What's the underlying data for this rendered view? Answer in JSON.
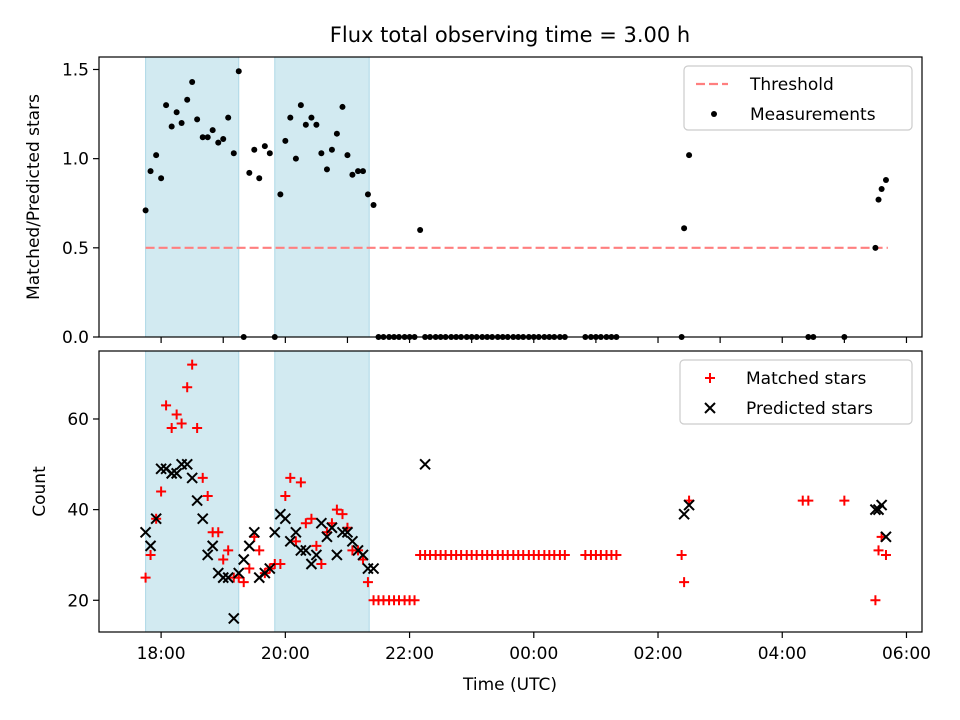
{
  "chart_data": {
    "title": "Flux total observing time = 3.00 h",
    "x_axis": {
      "label": "Time (UTC)",
      "range_hours": [
        17.0,
        6.25
      ],
      "ticks": [
        {
          "value": 18,
          "label": "18:00"
        },
        {
          "value": 20,
          "label": "20:00"
        },
        {
          "value": 22,
          "label": "22:00"
        },
        {
          "value": 24,
          "label": "00:00"
        },
        {
          "value": 26,
          "label": "02:00"
        },
        {
          "value": 28,
          "label": "04:00"
        },
        {
          "value": 30,
          "label": "06:00"
        }
      ]
    },
    "shaded_intervals_hours": [
      [
        17.75,
        19.25
      ],
      [
        19.83,
        21.35
      ]
    ],
    "shade_color": "#add8e6",
    "panels": [
      {
        "id": "top",
        "type": "scatter",
        "ylabel": "Matched/Predicted stars",
        "ylim": [
          0,
          1.57
        ],
        "yticks": [
          {
            "value": 0.0,
            "label": "0.0"
          },
          {
            "value": 0.5,
            "label": "0.5"
          },
          {
            "value": 1.0,
            "label": "1.0"
          },
          {
            "value": 1.5,
            "label": "1.5"
          }
        ],
        "threshold": {
          "name": "Threshold",
          "value": 0.5,
          "x_range": [
            17.75,
            29.7
          ],
          "color": "#ff7f7f"
        },
        "legend": {
          "position": "top-right",
          "entries": [
            "Threshold",
            "Measurements"
          ]
        },
        "series": [
          {
            "name": "Measurements",
            "color": "#000000",
            "marker": "dot",
            "x": [
              17.75,
              17.83,
              17.92,
              18.0,
              18.08,
              18.17,
              18.25,
              18.33,
              18.42,
              18.5,
              18.58,
              18.67,
              18.75,
              18.83,
              18.92,
              19.0,
              19.08,
              19.17,
              19.25,
              19.33,
              19.42,
              19.5,
              19.58,
              19.67,
              19.75,
              19.83,
              19.92,
              20.0,
              20.08,
              20.17,
              20.25,
              20.33,
              20.42,
              20.5,
              20.58,
              20.67,
              20.75,
              20.83,
              20.92,
              21.0,
              21.08,
              21.17,
              21.25,
              21.33,
              21.42,
              21.5,
              21.58,
              21.67,
              21.75,
              21.83,
              21.92,
              22.0,
              22.08,
              22.17,
              22.25,
              22.33,
              22.42,
              22.5,
              22.58,
              22.67,
              22.75,
              22.83,
              22.92,
              23.0,
              23.08,
              23.17,
              23.25,
              23.33,
              23.42,
              23.5,
              23.58,
              23.67,
              23.75,
              23.83,
              23.92,
              24.0,
              24.08,
              24.17,
              24.25,
              24.33,
              24.42,
              24.5,
              24.83,
              24.92,
              25.0,
              25.08,
              25.17,
              25.25,
              25.33,
              26.38,
              26.42,
              26.5,
              28.42,
              28.5,
              29.0,
              29.5,
              29.55,
              29.6,
              29.67
            ],
            "y": [
              0.71,
              0.93,
              1.02,
              0.89,
              1.3,
              1.18,
              1.26,
              1.2,
              1.33,
              1.43,
              1.22,
              1.12,
              1.12,
              1.16,
              1.09,
              1.11,
              1.23,
              1.03,
              1.49,
              0.0,
              0.92,
              1.05,
              0.89,
              1.07,
              1.03,
              0.0,
              0.8,
              1.1,
              1.23,
              1.0,
              1.3,
              1.19,
              1.23,
              1.19,
              1.03,
              0.94,
              1.05,
              1.14,
              1.29,
              1.02,
              0.91,
              0.93,
              0.93,
              0.8,
              0.74,
              0.0,
              0.0,
              0.0,
              0.0,
              0.0,
              0.0,
              0.0,
              0.0,
              0.6,
              0.0,
              0.0,
              0.0,
              0.0,
              0.0,
              0.0,
              0.0,
              0.0,
              0.0,
              0.0,
              0.0,
              0.0,
              0.0,
              0.0,
              0.0,
              0.0,
              0.0,
              0.0,
              0.0,
              0.0,
              0.0,
              0.0,
              0.0,
              0.0,
              0.0,
              0.0,
              0.0,
              0.0,
              0.0,
              0.0,
              0.0,
              0.0,
              0.0,
              0.0,
              0.0,
              0.0,
              0.61,
              1.02,
              0.0,
              0.0,
              0.0,
              0.5,
              0.77,
              0.83,
              0.88
            ]
          }
        ]
      },
      {
        "id": "bottom",
        "type": "scatter",
        "ylabel": "Count",
        "ylim": [
          13,
          75
        ],
        "yticks": [
          {
            "value": 20,
            "label": "20"
          },
          {
            "value": 40,
            "label": "40"
          },
          {
            "value": 60,
            "label": "60"
          }
        ],
        "legend": {
          "position": "top-right",
          "entries": [
            "Matched stars",
            "Predicted stars"
          ]
        },
        "series": [
          {
            "name": "Matched stars",
            "color": "#ff0000",
            "marker": "plus",
            "x": [
              17.75,
              17.83,
              17.92,
              18.0,
              18.08,
              18.17,
              18.25,
              18.33,
              18.42,
              18.5,
              18.58,
              18.67,
              18.75,
              18.83,
              18.92,
              19.0,
              19.08,
              19.17,
              19.25,
              19.33,
              19.42,
              19.5,
              19.58,
              19.67,
              19.75,
              19.83,
              19.92,
              20.0,
              20.08,
              20.17,
              20.25,
              20.33,
              20.42,
              20.5,
              20.58,
              20.67,
              20.75,
              20.83,
              20.92,
              21.0,
              21.08,
              21.17,
              21.25,
              21.33,
              21.42,
              21.5,
              21.58,
              21.67,
              21.75,
              21.83,
              21.92,
              22.0,
              22.08,
              22.17,
              22.25,
              22.33,
              22.42,
              22.5,
              22.58,
              22.67,
              22.75,
              22.83,
              22.92,
              23.0,
              23.08,
              23.17,
              23.25,
              23.33,
              23.42,
              23.5,
              23.58,
              23.67,
              23.75,
              23.83,
              23.92,
              24.0,
              24.08,
              24.17,
              24.25,
              24.33,
              24.42,
              24.5,
              24.83,
              24.92,
              25.0,
              25.08,
              25.17,
              25.25,
              25.33,
              26.38,
              26.42,
              26.5,
              28.33,
              28.42,
              29.0,
              29.5,
              29.55,
              29.6,
              29.67
            ],
            "y": [
              25,
              30,
              38,
              44,
              63,
              58,
              61,
              59,
              67,
              72,
              58,
              47,
              43,
              35,
              35,
              29,
              31,
              25,
              25,
              24,
              27,
              34,
              31,
              26,
              27,
              28,
              28,
              43,
              47,
              33,
              46,
              37,
              38,
              32,
              28,
              35,
              37,
              40,
              39,
              36,
              31,
              31,
              29,
              24,
              20,
              20,
              20,
              20,
              20,
              20,
              20,
              20,
              20,
              30,
              30,
              30,
              30,
              30,
              30,
              30,
              30,
              30,
              30,
              30,
              30,
              30,
              30,
              30,
              30,
              30,
              30,
              30,
              30,
              30,
              30,
              30,
              30,
              30,
              30,
              30,
              30,
              30,
              30,
              30,
              30,
              30,
              30,
              30,
              30,
              30,
              24,
              42,
              42,
              42,
              42,
              20,
              31,
              34,
              30
            ]
          },
          {
            "name": "Predicted stars",
            "color": "#000000",
            "marker": "cross",
            "x": [
              17.75,
              17.83,
              17.92,
              18.0,
              18.08,
              18.17,
              18.25,
              18.33,
              18.42,
              18.5,
              18.58,
              18.67,
              18.75,
              18.83,
              18.92,
              19.0,
              19.08,
              19.17,
              19.25,
              19.33,
              19.42,
              19.5,
              19.58,
              19.67,
              19.75,
              19.83,
              19.92,
              20.0,
              20.08,
              20.17,
              20.25,
              20.33,
              20.42,
              20.5,
              20.58,
              20.67,
              20.75,
              20.83,
              20.92,
              21.0,
              21.08,
              21.17,
              21.25,
              21.33,
              21.42,
              22.25,
              26.42,
              26.5,
              29.5,
              29.55,
              29.6,
              29.67
            ],
            "y": [
              35,
              32,
              38,
              49,
              49,
              48,
              48,
              50,
              50,
              47,
              42,
              38,
              30,
              32,
              26,
              25,
              25,
              16,
              26,
              29,
              32,
              35,
              25,
              26,
              27,
              35,
              39,
              38,
              33,
              35,
              31,
              31,
              28,
              30,
              37,
              34,
              36,
              30,
              35,
              35,
              33,
              31,
              30,
              27,
              27,
              50,
              39,
              41,
              40,
              40,
              41,
              34
            ]
          }
        ]
      }
    ]
  }
}
